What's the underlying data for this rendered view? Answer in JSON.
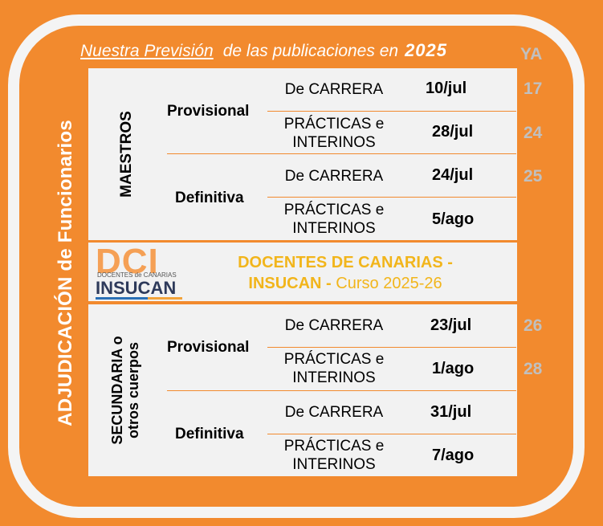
{
  "header": {
    "underlined": "Nuestra Previsión",
    "middle": "de las publicaciones en",
    "year": "2025",
    "ya_label": "YA"
  },
  "side_title": "ADJUDICACIÓN de Funcionarios",
  "maestros": {
    "group": "MAESTROS",
    "provisional": {
      "label": "Provisional",
      "rows": [
        {
          "cat1": "De CARRERA",
          "cat2": "",
          "date": "10/jul",
          "ya": "17"
        },
        {
          "cat1": "PRÁCTICAS e",
          "cat2": "INTERINOS",
          "date": "28/jul",
          "ya": "24"
        }
      ]
    },
    "definitiva": {
      "label": "Definitiva",
      "rows": [
        {
          "cat1": "De CARRERA",
          "cat2": "",
          "date": "24/jul",
          "ya": "25"
        },
        {
          "cat1": "PRÁCTICAS e",
          "cat2": "INTERINOS",
          "date": "5/ago",
          "ya": ""
        }
      ]
    }
  },
  "brand": {
    "logo_big": "DCI",
    "logo_sub": "DOCENTES de CANARIAS",
    "logo_name": "INSUCAN",
    "line1": "DOCENTES DE CANARIAS -",
    "line2_bold": "INSUCAN -",
    "line2_course": "Curso 2025-26"
  },
  "secundaria": {
    "group_line1": "SECUNDARIA o",
    "group_line2": "otros cuerpos",
    "provisional": {
      "label": "Provisional",
      "rows": [
        {
          "cat1": "De CARRERA",
          "cat2": "",
          "date": "23/jul",
          "ya": "26"
        },
        {
          "cat1": "PRÁCTICAS e",
          "cat2": "INTERINOS",
          "date": "1/ago",
          "ya": "28"
        }
      ]
    },
    "definitiva": {
      "label": "Definitiva",
      "rows": [
        {
          "cat1": "De CARRERA",
          "cat2": "",
          "date": "31/jul",
          "ya": ""
        },
        {
          "cat1": "PRÁCTICAS e",
          "cat2": "INTERINOS",
          "date": "7/ago",
          "ya": ""
        }
      ]
    }
  }
}
